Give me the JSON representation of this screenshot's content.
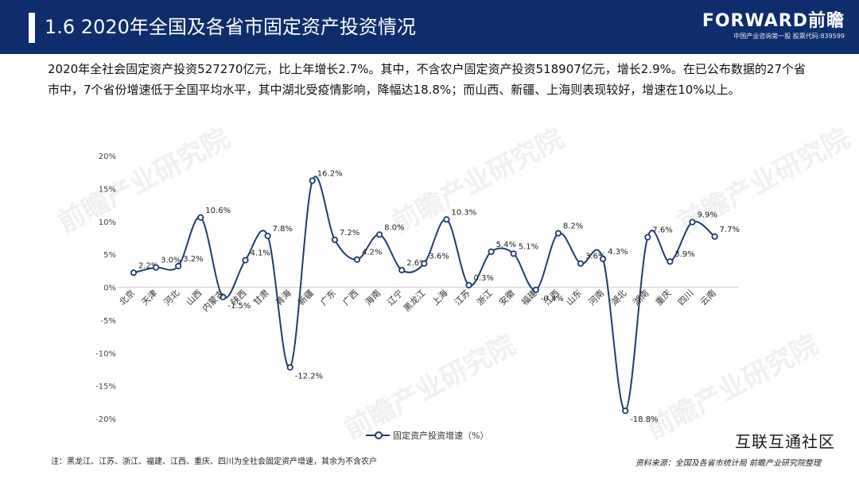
{
  "header": {
    "title": "1.6 2020年全国及各省市固定资产投资情况"
  },
  "logo": {
    "main": "FORWARD前瞻",
    "sub": "中国产业咨询第一股 股票代码:839599"
  },
  "intro": "2020年全社会固定资产投资527270亿元，比上年增长2.7%。其中，不含农户固定资产投资518907亿元，增长2.9%。在已公布数据的27个省市中，7个省份增速低于全国平均水平，其中湖北受疫情影响，降幅达18.8%；而山西、新疆、上海则表现较好，增速在10%以上。",
  "watermark": "前瞻产业研究院",
  "chart_data": {
    "type": "line",
    "categories": [
      "北京",
      "天津",
      "河北",
      "山西",
      "内蒙古",
      "陕西",
      "甘肃",
      "青海",
      "新疆",
      "广东",
      "广西",
      "海南",
      "辽宁",
      "黑龙江",
      "上海",
      "江苏",
      "浙江",
      "安徽",
      "福建",
      "江西",
      "山东",
      "河南",
      "湖北",
      "湖南",
      "重庆",
      "四川",
      "云南"
    ],
    "series": [
      {
        "name": "固定资产投资增速（%）",
        "values": [
          2.2,
          3.0,
          3.2,
          10.6,
          -1.5,
          4.1,
          7.8,
          -12.2,
          16.2,
          7.2,
          4.2,
          8.0,
          2.6,
          3.6,
          10.3,
          0.3,
          5.4,
          5.1,
          -0.4,
          8.2,
          3.6,
          4.3,
          -18.8,
          7.6,
          3.9,
          9.9,
          7.7
        ]
      }
    ],
    "data_labels": [
      "2.2%",
      "3.0%",
      "3.2%",
      "10.6%",
      "-1.5%",
      "4.1%",
      "7.8%",
      "-12.2%",
      "16.2%",
      "7.2%",
      "4.2%",
      "8.0%",
      "2.6%",
      "3.6%",
      "10.3%",
      "0.3%",
      "5.4%",
      "5.1%",
      "-0.4%",
      "8.2%",
      "3.6%",
      "4.3%",
      "-18.8%",
      "7.6%",
      "3.9%",
      "9.9%",
      "7.7%"
    ],
    "ylim": [
      -20,
      20
    ],
    "y_ticks": [
      "20%",
      "15%",
      "10%",
      "5%",
      "0%",
      "-5%",
      "-10%",
      "-15%",
      "-20%"
    ],
    "y_tick_values": [
      20,
      15,
      10,
      5,
      0,
      -5,
      -10,
      -15,
      -20
    ],
    "color": "#1f3c6e",
    "grid": false,
    "legend": "bottom"
  },
  "legend_label": "固定资产投资增速（%）",
  "note": "注：黑龙江、江苏、浙江、福建、江西、重庆、四川为全社会固定资产增速，其余为不含农户",
  "source": "资料来源：全国及各省市统计局 前瞻产业研究院整理",
  "wechat": "互联互通社区"
}
